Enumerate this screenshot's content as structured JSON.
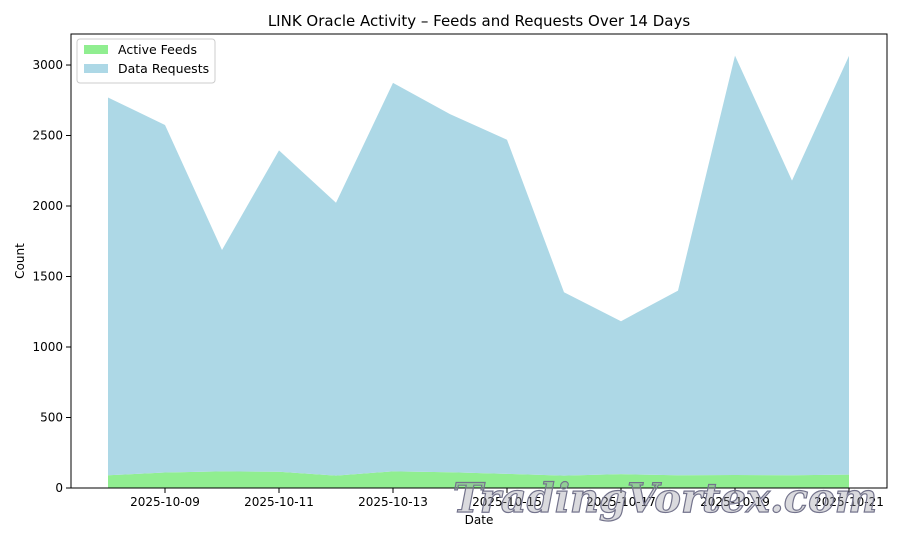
{
  "watermark": "TradingVortex.com",
  "chart_data": {
    "type": "area",
    "stacked": true,
    "title": "LINK Oracle Activity – Feeds and Requests Over 14 Days",
    "xlabel": "Date",
    "ylabel": "Count",
    "x": [
      "2025-10-08",
      "2025-10-09",
      "2025-10-10",
      "2025-10-11",
      "2025-10-12",
      "2025-10-13",
      "2025-10-14",
      "2025-10-15",
      "2025-10-16",
      "2025-10-17",
      "2025-10-18",
      "2025-10-19",
      "2025-10-20",
      "2025-10-21"
    ],
    "x_tick_labels": [
      "2025-10-09",
      "2025-10-11",
      "2025-10-13",
      "2025-10-15",
      "2025-10-17",
      "2025-10-19",
      "2025-10-21"
    ],
    "ylim": [
      0,
      3220
    ],
    "y_ticks": [
      0,
      500,
      1000,
      1500,
      2000,
      2500,
      3000
    ],
    "legend_position": "top-left",
    "grid": false,
    "series": [
      {
        "name": "Active Feeds",
        "color": "#90ee90",
        "values": [
          90,
          110,
          118,
          115,
          88,
          118,
          112,
          100,
          88,
          98,
          90,
          92,
          90,
          95
        ]
      },
      {
        "name": "Data Requests",
        "color": "#add8e6",
        "values": [
          2680,
          2465,
          1570,
          2280,
          1935,
          2755,
          2540,
          2370,
          1300,
          1085,
          1310,
          2975,
          2090,
          2970
        ]
      }
    ]
  }
}
